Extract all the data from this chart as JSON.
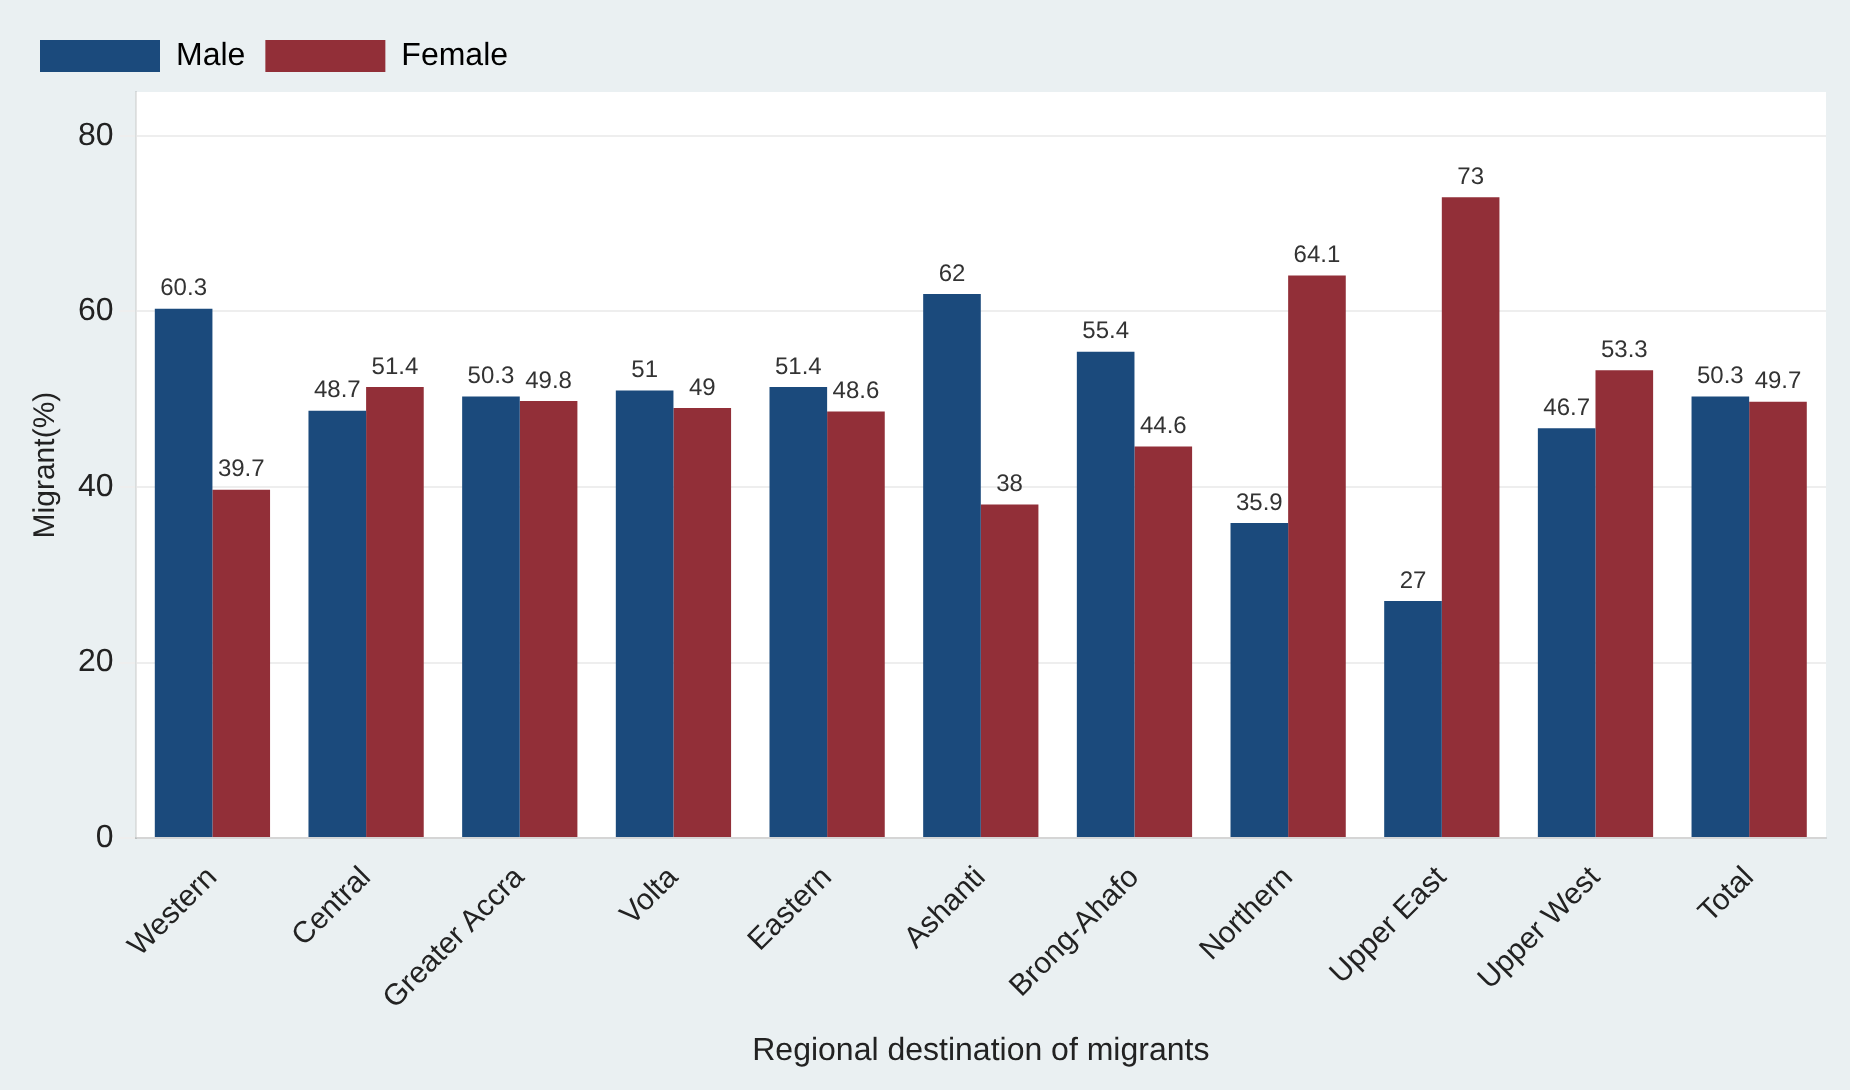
{
  "chart_data": {
    "type": "bar",
    "xlabel": "Regional destination of migrants",
    "ylabel": "Migrant(%)",
    "categories": [
      "Western",
      "Central",
      "Greater Accra",
      "Volta",
      "Eastern",
      "Ashanti",
      "Brong-Ahafo",
      "Northern",
      "Upper East",
      "Upper West",
      "Total"
    ],
    "series": [
      {
        "name": "Male",
        "color": "#1b4a7c",
        "values": [
          60.3,
          48.7,
          50.3,
          51,
          51.4,
          62,
          55.4,
          35.9,
          27,
          46.7,
          50.3
        ]
      },
      {
        "name": "Female",
        "color": "#922f38",
        "values": [
          39.7,
          51.4,
          49.8,
          49,
          48.6,
          38,
          44.6,
          64.1,
          73,
          53.3,
          49.7
        ]
      }
    ],
    "ylim": [
      0,
      85
    ],
    "yticks": [
      0,
      20,
      40,
      60,
      80
    ],
    "grid": "y",
    "legend": "top left",
    "data_labels": true
  }
}
